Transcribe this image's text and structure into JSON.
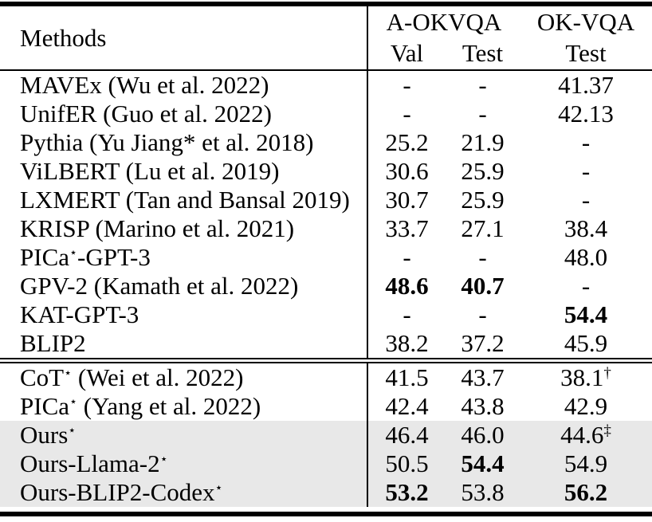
{
  "page": {
    "background": "#ffffff",
    "text_color": "#000000",
    "highlight_color": "#e8e8e8"
  },
  "t": {
    "header": {
      "methods": "Methods",
      "group_aokvqa": "A-OKVQA",
      "group_okvqa": "OK-VQA",
      "sub_val": "Val",
      "sub_test": "Test",
      "sub_ok_test": "Test"
    },
    "sections": [
      {
        "rows": [
          {
            "m1": "MAVEx (Wu et al. 2022)",
            "val": "-",
            "test": "-",
            "ok": "41.37"
          },
          {
            "m1": "UnifER (Guo et al. 2022)",
            "val": "-",
            "test": "-",
            "ok": "42.13"
          },
          {
            "m1": "Pythia (Yu Jiang* et al. 2018)",
            "val": "25.2",
            "test": "21.9",
            "ok": "-"
          },
          {
            "m1": "ViLBERT (Lu et al. 2019)",
            "val": "30.6",
            "test": "25.9",
            "ok": "-"
          },
          {
            "m1": "LXMERT (Tan and Bansal 2019)",
            "val": "30.7",
            "test": "25.9",
            "ok": "-"
          },
          {
            "m1": "KRISP (Marino et al. 2021)",
            "val": "33.7",
            "test": "27.1",
            "ok": "38.4"
          },
          {
            "m1": "PICa",
            "sup": "⋆",
            "m2": "-GPT-3",
            "val": "-",
            "test": "-",
            "ok": "48.0"
          },
          {
            "m1": "GPV-2 (Kamath et al. 2022)",
            "val": "48.6",
            "test": "40.7",
            "ok": "-",
            "val_bold": true,
            "test_bold": true
          },
          {
            "m1": "KAT-GPT-3",
            "val": "-",
            "test": "-",
            "ok": "54.4",
            "ok_bold": true
          },
          {
            "m1": "BLIP2",
            "val": "38.2",
            "test": "37.2",
            "ok": "45.9"
          }
        ]
      },
      {
        "rows": [
          {
            "m1": "CoT",
            "sup": "⋆",
            "m2": " (Wei et al. 2022)",
            "val": "41.5",
            "test": "43.7",
            "ok": "38.1",
            "ok_sup": "†"
          },
          {
            "m1": "PICa",
            "sup": "⋆",
            "m2": " (Yang et al. 2022)",
            "val": "42.4",
            "test": "43.8",
            "ok": "42.9"
          },
          {
            "m1": "Ours",
            "sup": "⋆",
            "val": "46.4",
            "test": "46.0",
            "ok": "44.6",
            "ok_sup": "‡",
            "highlighted": true
          },
          {
            "m1": "Ours-Llama-2",
            "sup": "⋆",
            "val": "50.5",
            "test": "54.4",
            "ok": "54.9",
            "test_bold": true,
            "highlighted": true
          },
          {
            "m1": "Ours-BLIP2-Codex",
            "sup": "⋆",
            "val": "53.2",
            "test": "53.8",
            "ok": "56.2",
            "val_bold": true,
            "ok_bold": true,
            "highlighted": true
          }
        ]
      }
    ]
  }
}
